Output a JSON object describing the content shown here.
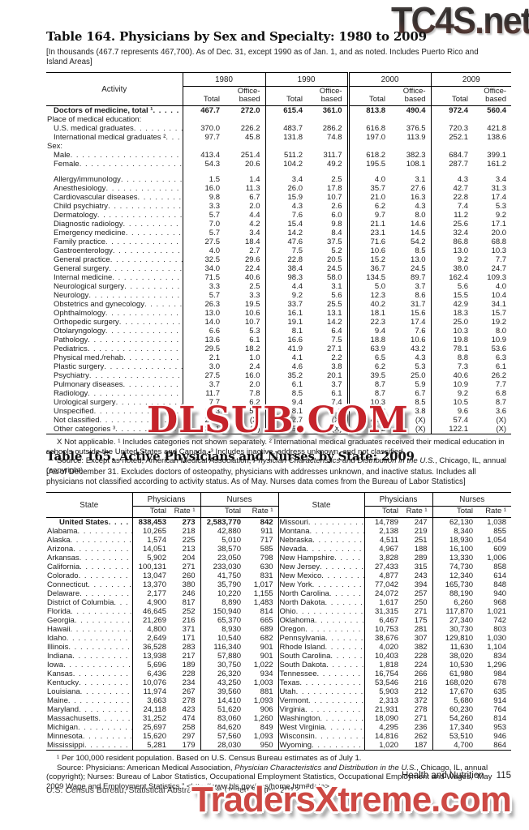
{
  "watermarks": {
    "top": "TC4S.net",
    "middle": "DLSUB.COM",
    "bottom": "TradersXtreme.com"
  },
  "table164": {
    "title": "Table 164. Physicians by Sex and Specialty: 1980 to 2009",
    "bracket_note": "[In thousands (467.7 represents 467,700). As of Dec. 31, except 1990 as of Jan. 1, and as noted. Includes Puerto Rico and Island Areas]",
    "stub_header": "Activity",
    "col_groups": [
      "1980",
      "1990",
      "2000",
      "2009"
    ],
    "sub_cols": [
      "Total",
      "Office-based"
    ],
    "rows": [
      {
        "label": "Doctors of medicine, total ¹",
        "bold": true,
        "indent": 1,
        "values": [
          "467.7",
          "272.0",
          "615.4",
          "361.0",
          "813.8",
          "490.4",
          "972.4",
          "560.4"
        ]
      },
      {
        "label": "Place of medical education:",
        "indent": 0,
        "values": null
      },
      {
        "label": "U.S. medical graduates",
        "indent": 1,
        "values": [
          "370.0",
          "226.2",
          "483.7",
          "286.2",
          "616.8",
          "376.5",
          "720.3",
          "421.8"
        ]
      },
      {
        "label": "International medical graduates ²",
        "indent": 1,
        "values": [
          "97.7",
          "45.8",
          "131.8",
          "74.8",
          "197.0",
          "113.9",
          "252.1",
          "138.6"
        ]
      },
      {
        "label": "Sex:",
        "indent": 0,
        "values": null
      },
      {
        "label": "Male",
        "indent": 1,
        "values": [
          "413.4",
          "251.4",
          "511.2",
          "311.7",
          "618.2",
          "382.3",
          "684.7",
          "399.1"
        ]
      },
      {
        "label": "Female",
        "indent": 1,
        "values": [
          "54.3",
          "20.6",
          "104.2",
          "49.2",
          "195.5",
          "108.1",
          "287.7",
          "161.2"
        ]
      },
      {
        "blank": true
      },
      {
        "label": "Allergy/immunology",
        "indent": 1,
        "values": [
          "1.5",
          "1.4",
          "3.4",
          "2.5",
          "4.0",
          "3.1",
          "4.3",
          "3.4"
        ]
      },
      {
        "label": "Anesthesiology",
        "indent": 1,
        "values": [
          "16.0",
          "11.3",
          "26.0",
          "17.8",
          "35.7",
          "27.6",
          "42.7",
          "31.3"
        ]
      },
      {
        "label": "Cardiovascular diseases",
        "indent": 1,
        "values": [
          "9.8",
          "6.7",
          "15.9",
          "10.7",
          "21.0",
          "16.3",
          "22.8",
          "17.4"
        ]
      },
      {
        "label": "Child psychiatry",
        "indent": 1,
        "values": [
          "3.3",
          "2.0",
          "4.3",
          "2.6",
          "6.2",
          "4.3",
          "7.4",
          "5.3"
        ]
      },
      {
        "label": "Dermatology",
        "indent": 1,
        "values": [
          "5.7",
          "4.4",
          "7.6",
          "6.0",
          "9.7",
          "8.0",
          "11.2",
          "9.2"
        ]
      },
      {
        "label": "Diagnostic radiology",
        "indent": 1,
        "values": [
          "7.0",
          "4.2",
          "15.4",
          "9.8",
          "21.1",
          "14.6",
          "25.6",
          "17.1"
        ]
      },
      {
        "label": "Emergency medicine",
        "indent": 1,
        "values": [
          "5.7",
          "3.4",
          "14.2",
          "8.4",
          "23.1",
          "14.5",
          "32.4",
          "20.0"
        ]
      },
      {
        "label": "Family practice",
        "indent": 1,
        "values": [
          "27.5",
          "18.4",
          "47.6",
          "37.5",
          "71.6",
          "54.2",
          "86.8",
          "68.8"
        ]
      },
      {
        "label": "Gastroenterology",
        "indent": 1,
        "values": [
          "4.0",
          "2.7",
          "7.5",
          "5.2",
          "10.6",
          "8.5",
          "13.0",
          "10.3"
        ]
      },
      {
        "label": "General practice",
        "indent": 1,
        "values": [
          "32.5",
          "29.6",
          "22.8",
          "20.5",
          "15.2",
          "13.0",
          "9.2",
          "7.7"
        ]
      },
      {
        "label": "General surgery",
        "indent": 1,
        "values": [
          "34.0",
          "22.4",
          "38.4",
          "24.5",
          "36.7",
          "24.5",
          "38.0",
          "24.7"
        ]
      },
      {
        "label": "Internal medicine",
        "indent": 1,
        "values": [
          "71.5",
          "40.6",
          "98.3",
          "58.0",
          "134.5",
          "89.7",
          "162.4",
          "109.3"
        ]
      },
      {
        "label": "Neurological surgery",
        "indent": 1,
        "values": [
          "3.3",
          "2.5",
          "4.4",
          "3.1",
          "5.0",
          "3.7",
          "5.6",
          "4.0"
        ]
      },
      {
        "label": "Neurology",
        "indent": 1,
        "values": [
          "5.7",
          "3.3",
          "9.2",
          "5.6",
          "12.3",
          "8.6",
          "15.5",
          "10.4"
        ]
      },
      {
        "label": "Obstetrics and gynecology",
        "indent": 1,
        "values": [
          "26.3",
          "19.5",
          "33.7",
          "25.5",
          "40.2",
          "31.7",
          "42.9",
          "34.1"
        ]
      },
      {
        "label": "Ophthalmology",
        "indent": 1,
        "values": [
          "13.0",
          "10.6",
          "16.1",
          "13.1",
          "18.1",
          "15.6",
          "18.3",
          "15.7"
        ]
      },
      {
        "label": "Orthopedic surgery",
        "indent": 1,
        "values": [
          "14.0",
          "10.7",
          "19.1",
          "14.2",
          "22.3",
          "17.4",
          "25.0",
          "19.2"
        ]
      },
      {
        "label": "Otolaryngology",
        "indent": 1,
        "values": [
          "6.6",
          "5.3",
          "8.1",
          "6.4",
          "9.4",
          "7.6",
          "10.3",
          "8.0"
        ]
      },
      {
        "label": "Pathology",
        "indent": 1,
        "values": [
          "13.6",
          "6.1",
          "16.6",
          "7.5",
          "18.8",
          "10.6",
          "19.8",
          "10.9"
        ]
      },
      {
        "label": "Pediatrics",
        "indent": 1,
        "values": [
          "29.5",
          "18.2",
          "41.9",
          "27.1",
          "63.9",
          "43.2",
          "78.1",
          "53.6"
        ]
      },
      {
        "label": "Physical med./rehab",
        "indent": 1,
        "values": [
          "2.1",
          "1.0",
          "4.1",
          "2.2",
          "6.5",
          "4.3",
          "8.8",
          "6.3"
        ]
      },
      {
        "label": "Plastic surgery",
        "indent": 1,
        "values": [
          "3.0",
          "2.4",
          "4.6",
          "3.8",
          "6.2",
          "5.3",
          "7.3",
          "6.1"
        ]
      },
      {
        "label": "Psychiatry",
        "indent": 1,
        "values": [
          "27.5",
          "16.0",
          "35.2",
          "20.1",
          "39.5",
          "25.0",
          "40.6",
          "26.2"
        ]
      },
      {
        "label": "Pulmonary diseases",
        "indent": 1,
        "values": [
          "3.7",
          "2.0",
          "6.1",
          "3.7",
          "8.7",
          "5.9",
          "10.9",
          "7.7"
        ]
      },
      {
        "label": "Radiology",
        "indent": 1,
        "values": [
          "11.7",
          "7.8",
          "8.5",
          "6.1",
          "8.7",
          "6.7",
          "9.2",
          "6.8"
        ]
      },
      {
        "label": "Urological surgery",
        "indent": 1,
        "values": [
          "7.7",
          "6.2",
          "9.4",
          "7.4",
          "10.3",
          "8.5",
          "10.5",
          "8.7"
        ]
      },
      {
        "label": "Unspecified",
        "indent": 1,
        "values": [
          "12.3",
          "5.0",
          "8.1",
          "1.6",
          "8.3",
          "3.8",
          "9.6",
          "3.6"
        ]
      },
      {
        "label": "Not classified",
        "indent": 1,
        "values": [
          "20.6",
          "(X)",
          "12.7",
          "(X)",
          "45.1",
          "(X)",
          "57.4",
          "(X)"
        ]
      },
      {
        "label": "Other categories ³",
        "indent": 1,
        "values": [
          "32.1",
          "(X)",
          "55.4",
          "(X)",
          "75.2",
          "(X)",
          "122.1",
          "(X)"
        ]
      }
    ],
    "footnote": "X Not applicable. ¹ Includes categories not shown separately. ² International medical graduates received their medical education in schools outside the United States and Canada. ³ Includes inactive, address unknown, and not classified.",
    "source": {
      "prefix": "Source: Except as noted, American Medical Association, ",
      "italic": "Physician Characteristics and Distribution in the U.S.",
      "suffix": ", Chicago, IL, annual (copyright)."
    }
  },
  "table165": {
    "title": "Table 165. Active Physicians and Nurses by State: 2009",
    "bracket_note": "[As of December 31. Excludes doctors of osteopathy, physicians with addresses unknown, and inactive status. Includes all physicians not classified according to activity status. As of May. Nurses data comes from the Bureau of Labor Statistics]",
    "stub_header": "State",
    "col_groups": [
      "Physicians",
      "Nurses"
    ],
    "sub_cols": [
      "Total",
      "Rate ¹"
    ],
    "rows_left": [
      {
        "label": "United States",
        "bold": true,
        "indent": 2,
        "values": [
          "838,453",
          "273",
          "2,583,770",
          "842"
        ]
      },
      {
        "label": "Alabama",
        "values": [
          "10,265",
          "218",
          "42,880",
          "911"
        ]
      },
      {
        "label": "Alaska",
        "values": [
          "1,574",
          "225",
          "5,010",
          "717"
        ]
      },
      {
        "label": "Arizona",
        "values": [
          "14,051",
          "213",
          "38,570",
          "585"
        ]
      },
      {
        "label": "Arkansas",
        "values": [
          "5,902",
          "204",
          "23,050",
          "798"
        ]
      },
      {
        "label": "California",
        "values": [
          "100,131",
          "271",
          "233,030",
          "630"
        ]
      },
      {
        "label": "Colorado",
        "values": [
          "13,047",
          "260",
          "41,750",
          "831"
        ]
      },
      {
        "label": "Connecticut",
        "values": [
          "13,370",
          "380",
          "35,790",
          "1,017"
        ]
      },
      {
        "label": "Delaware",
        "values": [
          "2,177",
          "246",
          "10,220",
          "1,155"
        ]
      },
      {
        "label": "District of Columbia",
        "values": [
          "4,900",
          "817",
          "8,890",
          "1,483"
        ]
      },
      {
        "label": "Florida",
        "values": [
          "46,645",
          "252",
          "150,940",
          "814"
        ]
      },
      {
        "label": "Georgia",
        "values": [
          "21,269",
          "216",
          "65,370",
          "665"
        ]
      },
      {
        "label": "Hawaii",
        "values": [
          "4,800",
          "371",
          "8,930",
          "689"
        ]
      },
      {
        "label": "Idaho",
        "values": [
          "2,649",
          "171",
          "10,540",
          "682"
        ]
      },
      {
        "label": "Illinois",
        "values": [
          "36,528",
          "283",
          "116,340",
          "901"
        ]
      },
      {
        "label": "Indiana",
        "values": [
          "13,938",
          "217",
          "57,880",
          "901"
        ]
      },
      {
        "label": "Iowa",
        "values": [
          "5,696",
          "189",
          "30,750",
          "1,022"
        ]
      },
      {
        "label": "Kansas",
        "values": [
          "6,436",
          "228",
          "26,320",
          "934"
        ]
      },
      {
        "label": "Kentucky",
        "values": [
          "10,076",
          "234",
          "43,250",
          "1,003"
        ]
      },
      {
        "label": "Louisiana",
        "values": [
          "11,974",
          "267",
          "39,560",
          "881"
        ]
      },
      {
        "label": "Maine",
        "values": [
          "3,663",
          "278",
          "14,410",
          "1,093"
        ]
      },
      {
        "label": "Maryland",
        "values": [
          "24,118",
          "423",
          "51,620",
          "906"
        ]
      },
      {
        "label": "Massachusetts",
        "values": [
          "31,252",
          "474",
          "83,060",
          "1,260"
        ]
      },
      {
        "label": "Michigan",
        "values": [
          "25,697",
          "258",
          "84,620",
          "849"
        ]
      },
      {
        "label": "Minnesota",
        "values": [
          "15,620",
          "297",
          "57,560",
          "1,093"
        ]
      },
      {
        "label": "Mississippi",
        "values": [
          "5,281",
          "179",
          "28,030",
          "950"
        ]
      }
    ],
    "rows_right": [
      {
        "label": "Missouri",
        "values": [
          "14,789",
          "247",
          "62,130",
          "1,038"
        ]
      },
      {
        "label": "Montana",
        "values": [
          "2,138",
          "219",
          "8,340",
          "855"
        ]
      },
      {
        "label": "Nebraska",
        "values": [
          "4,511",
          "251",
          "18,930",
          "1,054"
        ]
      },
      {
        "label": "Nevada",
        "values": [
          "4,967",
          "188",
          "16,100",
          "609"
        ]
      },
      {
        "label": "New Hampshire",
        "values": [
          "3,828",
          "289",
          "13,330",
          "1,006"
        ]
      },
      {
        "label": "New Jersey",
        "values": [
          "27,433",
          "315",
          "74,730",
          "858"
        ]
      },
      {
        "label": "New Mexico",
        "values": [
          "4,877",
          "243",
          "12,340",
          "614"
        ]
      },
      {
        "label": "New York",
        "values": [
          "77,042",
          "394",
          "165,730",
          "848"
        ]
      },
      {
        "label": "North Carolina",
        "values": [
          "24,072",
          "257",
          "88,190",
          "940"
        ]
      },
      {
        "label": "North Dakota",
        "values": [
          "1,617",
          "250",
          "6,260",
          "968"
        ]
      },
      {
        "label": "Ohio",
        "values": [
          "31,315",
          "271",
          "117,870",
          "1,021"
        ]
      },
      {
        "label": "Oklahoma",
        "values": [
          "6,467",
          "175",
          "27,340",
          "742"
        ]
      },
      {
        "label": "Oregon",
        "values": [
          "10,753",
          "281",
          "30,730",
          "803"
        ]
      },
      {
        "label": "Pennsylvania",
        "values": [
          "38,676",
          "307",
          "129,810",
          "1,030"
        ]
      },
      {
        "label": "Rhode Island",
        "values": [
          "4,020",
          "382",
          "11,630",
          "1,104"
        ]
      },
      {
        "label": "South Carolina",
        "values": [
          "10,403",
          "228",
          "38,020",
          "834"
        ]
      },
      {
        "label": "South Dakota",
        "values": [
          "1,818",
          "224",
          "10,530",
          "1,296"
        ]
      },
      {
        "label": "Tennessee",
        "values": [
          "16,754",
          "266",
          "61,980",
          "984"
        ]
      },
      {
        "label": "Texas",
        "values": [
          "53,546",
          "216",
          "168,020",
          "678"
        ]
      },
      {
        "label": "Utah",
        "values": [
          "5,903",
          "212",
          "17,670",
          "635"
        ]
      },
      {
        "label": "Vermont",
        "values": [
          "2,313",
          "372",
          "5,680",
          "914"
        ]
      },
      {
        "label": "Virginia",
        "values": [
          "21,931",
          "278",
          "60,230",
          "764"
        ]
      },
      {
        "label": "Washington",
        "values": [
          "18,090",
          "271",
          "54,260",
          "814"
        ]
      },
      {
        "label": "West Virginia",
        "values": [
          "4,295",
          "236",
          "17,340",
          "953"
        ]
      },
      {
        "label": "Wisconsin",
        "values": [
          "14,816",
          "262",
          "53,510",
          "946"
        ]
      },
      {
        "label": "Wyoming",
        "values": [
          "1,020",
          "187",
          "4,700",
          "864"
        ]
      }
    ],
    "footnote": "¹ Per 100,000 resident population. Based on U.S. Census Bureau estimates as of July 1.",
    "source": {
      "prefix": "Source: Physicians: American Medical Association, ",
      "italic": "Physician Characteristics and Distribution in the U.S.",
      "suffix": ", Chicago, IL, annual (copyright); Nurses: Bureau of Labor Statistics, Occupational Employment Statistics, Occupational Employment and Wages, “May 2009 Wage and Employment Statistics,” <http://www.bls.gov/oes/home.htm#data>."
    }
  },
  "footer": {
    "section_label": "Health and Nutrition",
    "page_number": "115",
    "left_text": "U.S. Census Bureau, Statistical Abstract of the United States: 2012"
  }
}
